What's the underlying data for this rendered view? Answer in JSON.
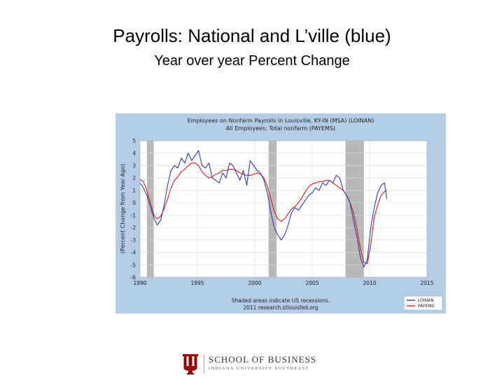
{
  "slide": {
    "title": "Payrolls:  National and L’ville (blue)",
    "subtitle": "Year over year Percent Change"
  },
  "logo": {
    "school": "SCHOOL OF BUSINESS",
    "university": "INDIANA UNIVERSITY SOUTHEAST",
    "colors": {
      "crimson": "#990000"
    }
  },
  "chart_data": {
    "type": "line",
    "title": "Employees on Nonfarm Payrolls in Louisville, KY-IN (MSA) (LOINAN)",
    "subtitle": "All Employees: Total nonfarm (PAYEMS)",
    "xlabel": "",
    "ylabel": "(Percent Change from Year Ago)",
    "xlim": [
      1990,
      2015
    ],
    "ylim": [
      -6,
      5
    ],
    "xticks": [
      "1990",
      "1995",
      "2000",
      "2005",
      "2010",
      "2015"
    ],
    "yticks": [
      "5",
      "4",
      "3",
      "2",
      "1",
      "0",
      "-1",
      "-2",
      "-3",
      "-4",
      "-5",
      "-6"
    ],
    "recessions": [
      [
        1990.6,
        1991.2
      ],
      [
        2001.2,
        2001.9
      ],
      [
        2007.9,
        2009.5
      ]
    ],
    "footnote": [
      "Shaded areas indicate US recessions.",
      "2011 research.stlouisfed.org"
    ],
    "grid": true,
    "legend_position": "bottom-right",
    "colors": {
      "background": "#b3cde6",
      "plot": "#ffffff",
      "recession": "#b8b8b8",
      "LOINAN": "#2a3fb0",
      "PAYEMS": "#dd1a1a"
    },
    "series": [
      {
        "name": "LOINAN",
        "x": [
          1990.0,
          1990.3,
          1990.6,
          1990.9,
          1991.2,
          1991.5,
          1991.8,
          1992.1,
          1992.4,
          1992.7,
          1993.0,
          1993.3,
          1993.6,
          1993.9,
          1994.2,
          1994.5,
          1994.8,
          1995.1,
          1995.4,
          1995.7,
          1996.0,
          1996.3,
          1996.6,
          1996.9,
          1997.2,
          1997.5,
          1997.8,
          1998.1,
          1998.4,
          1998.7,
          1999.0,
          1999.3,
          1999.6,
          1999.9,
          2000.2,
          2000.5,
          2000.8,
          2001.1,
          2001.4,
          2001.7,
          2002.0,
          2002.3,
          2002.6,
          2002.9,
          2003.2,
          2003.5,
          2003.8,
          2004.1,
          2004.4,
          2004.7,
          2005.0,
          2005.3,
          2005.6,
          2005.9,
          2006.2,
          2006.5,
          2006.8,
          2007.1,
          2007.4,
          2007.7,
          2008.0,
          2008.3,
          2008.6,
          2008.9,
          2009.2,
          2009.5,
          2009.8,
          2010.1,
          2010.4,
          2010.7,
          2011.0,
          2011.3,
          2011.5
        ],
        "y": [
          1.6,
          1.2,
          0.6,
          -0.3,
          -1.2,
          -1.8,
          -1.4,
          -0.2,
          1.4,
          2.6,
          3.0,
          2.8,
          3.6,
          3.2,
          4.0,
          3.4,
          3.8,
          4.2,
          3.0,
          2.8,
          3.2,
          2.0,
          1.8,
          1.6,
          2.4,
          2.0,
          3.2,
          3.0,
          2.4,
          1.8,
          2.6,
          1.4,
          3.4,
          3.0,
          2.6,
          2.4,
          1.8,
          0.8,
          -0.8,
          -2.0,
          -2.6,
          -3.0,
          -2.6,
          -1.8,
          -0.8,
          -0.4,
          -0.6,
          -0.2,
          0.2,
          0.6,
          0.8,
          1.2,
          1.0,
          1.6,
          1.4,
          1.8,
          1.6,
          2.2,
          2.0,
          1.0,
          0.6,
          0.0,
          -1.4,
          -2.8,
          -4.4,
          -5.2,
          -4.6,
          -2.0,
          -0.4,
          0.8,
          1.4,
          1.6,
          0.3
        ]
      },
      {
        "name": "PAYEMS",
        "x": [
          1990.0,
          1990.3,
          1990.6,
          1990.9,
          1991.2,
          1991.5,
          1991.8,
          1992.1,
          1992.4,
          1992.7,
          1993.0,
          1993.3,
          1993.6,
          1993.9,
          1994.2,
          1994.5,
          1994.8,
          1995.1,
          1995.4,
          1995.7,
          1996.0,
          1996.3,
          1996.6,
          1996.9,
          1997.2,
          1997.5,
          1997.8,
          1998.1,
          1998.4,
          1998.7,
          1999.0,
          1999.3,
          1999.6,
          1999.9,
          2000.2,
          2000.5,
          2000.8,
          2001.1,
          2001.4,
          2001.7,
          2002.0,
          2002.3,
          2002.6,
          2002.9,
          2003.2,
          2003.5,
          2003.8,
          2004.1,
          2004.4,
          2004.7,
          2005.0,
          2005.3,
          2005.6,
          2005.9,
          2006.2,
          2006.5,
          2006.8,
          2007.1,
          2007.4,
          2007.7,
          2008.0,
          2008.3,
          2008.6,
          2008.9,
          2009.2,
          2009.5,
          2009.8,
          2010.1,
          2010.4,
          2010.7,
          2011.0,
          2011.3,
          2011.5
        ],
        "y": [
          1.9,
          1.7,
          1.0,
          0.0,
          -1.0,
          -1.3,
          -1.1,
          -0.5,
          0.3,
          1.2,
          1.8,
          2.1,
          2.5,
          2.7,
          3.0,
          3.2,
          3.2,
          3.0,
          2.5,
          2.2,
          2.0,
          2.1,
          2.3,
          2.4,
          2.6,
          2.6,
          2.7,
          2.7,
          2.6,
          2.4,
          2.3,
          2.2,
          2.2,
          2.3,
          2.4,
          2.3,
          2.0,
          1.3,
          0.3,
          -0.7,
          -1.3,
          -1.5,
          -1.3,
          -0.9,
          -0.5,
          -0.3,
          0.0,
          0.4,
          0.9,
          1.3,
          1.5,
          1.6,
          1.7,
          1.7,
          1.8,
          1.8,
          1.6,
          1.4,
          1.2,
          1.0,
          0.6,
          0.0,
          -0.8,
          -2.1,
          -3.7,
          -4.8,
          -4.9,
          -3.4,
          -1.2,
          -0.2,
          0.6,
          0.9,
          1.0
        ]
      }
    ]
  }
}
